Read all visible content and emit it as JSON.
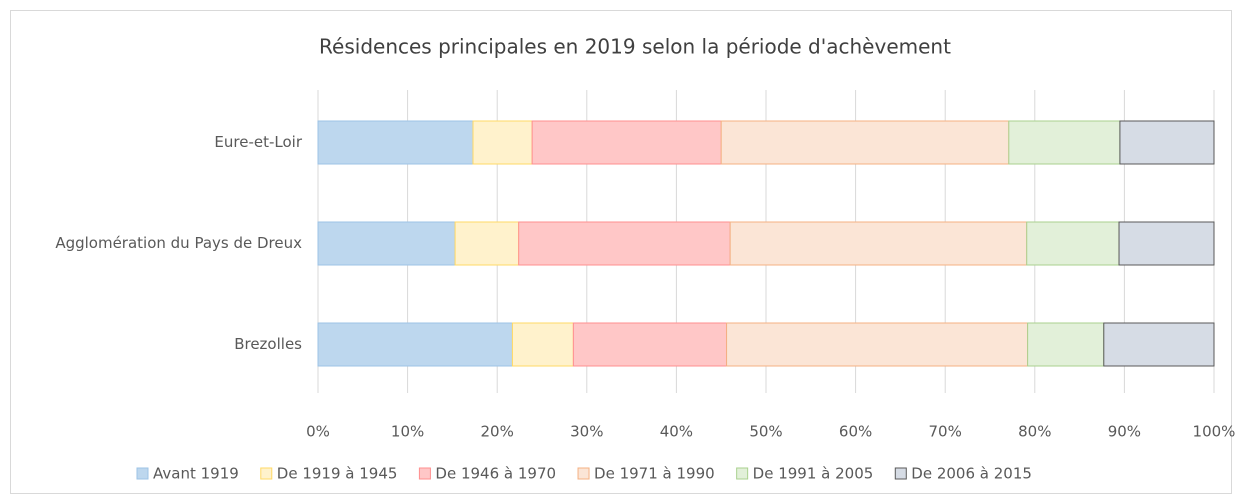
{
  "chart_data": {
    "type": "stacked_barh",
    "title": "Résidences principales en 2019 selon la période d'achèvement",
    "categories": [
      "Eure-et-Loir",
      "Agglomération du Pays de Dreux",
      "Brezolles"
    ],
    "series": [
      {
        "name": "Avant 1919",
        "color": "#bdd7ee",
        "edgecolor": "#9dc3e6",
        "values": [
          17.3,
          15.3,
          21.7
        ]
      },
      {
        "name": "De 1919 à 1945",
        "color": "#fff2cc",
        "edgecolor": "#ffd966",
        "values": [
          6.6,
          7.1,
          6.8
        ]
      },
      {
        "name": "De 1946 à 1970",
        "color": "#ffc7c7",
        "edgecolor": "#ff8f8f",
        "values": [
          21.1,
          23.6,
          17.1
        ]
      },
      {
        "name": "De 1971 à 1990",
        "color": "#fbe5d6",
        "edgecolor": "#f4b183",
        "values": [
          32.1,
          33.1,
          33.6
        ]
      },
      {
        "name": "De 1991 à 2005",
        "color": "#e2f0d9",
        "edgecolor": "#a9d18e",
        "values": [
          12.4,
          10.3,
          8.5
        ]
      },
      {
        "name": "De 2006 à 2015",
        "color": "#d6dce5",
        "edgecolor": "#595959",
        "values": [
          10.5,
          10.6,
          12.3
        ]
      }
    ],
    "xlim": [
      0,
      100
    ],
    "xticks": [
      {
        "value": 0,
        "label": "0%"
      },
      {
        "value": 10,
        "label": "10%"
      },
      {
        "value": 20,
        "label": "20%"
      },
      {
        "value": 30,
        "label": "30%"
      },
      {
        "value": 40,
        "label": "40%"
      },
      {
        "value": 50,
        "label": "50%"
      },
      {
        "value": 60,
        "label": "60%"
      },
      {
        "value": 70,
        "label": "70%"
      },
      {
        "value": 80,
        "label": "80%"
      },
      {
        "value": 90,
        "label": "90%"
      },
      {
        "value": 100,
        "label": "100%"
      }
    ],
    "grid": true,
    "legend": "bottom"
  }
}
